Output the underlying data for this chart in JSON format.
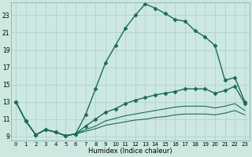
{
  "xlabel": "Humidex (Indice chaleur)",
  "bg_color": "#cce8e0",
  "grid_color": "#aacfc8",
  "line_color": "#1a6b5a",
  "xlim": [
    -0.5,
    23.5
  ],
  "ylim": [
    8.5,
    24.5
  ],
  "yticks": [
    9,
    11,
    13,
    15,
    17,
    19,
    21,
    23
  ],
  "xticks": [
    0,
    1,
    2,
    3,
    4,
    5,
    6,
    7,
    8,
    9,
    10,
    11,
    12,
    13,
    14,
    15,
    16,
    17,
    18,
    19,
    20,
    21,
    22,
    23
  ],
  "series": [
    {
      "y": [
        13.0,
        10.8,
        9.2,
        9.8,
        9.5,
        9.1,
        9.3,
        11.5,
        14.5,
        17.5,
        19.5,
        21.5,
        23.0,
        24.3,
        23.8,
        23.2,
        22.5,
        22.3,
        21.2,
        20.5,
        19.5,
        15.5,
        15.8,
        13.0
      ],
      "marker": "D",
      "lw": 1.0,
      "ms": 2.5,
      "dashed": false
    },
    {
      "y": [
        13.0,
        10.8,
        9.2,
        9.8,
        9.5,
        9.1,
        9.3,
        10.2,
        11.0,
        11.8,
        12.2,
        12.8,
        13.2,
        13.5,
        13.8,
        14.0,
        14.2,
        14.5,
        14.5,
        14.5,
        14.0,
        14.3,
        14.8,
        12.8
      ],
      "marker": "D",
      "lw": 1.0,
      "ms": 2.5,
      "dashed": false
    },
    {
      "y": [
        13.0,
        10.8,
        9.2,
        9.8,
        9.5,
        9.1,
        9.3,
        9.8,
        10.2,
        10.8,
        11.1,
        11.4,
        11.6,
        11.8,
        12.0,
        12.2,
        12.4,
        12.5,
        12.5,
        12.5,
        12.3,
        12.5,
        12.8,
        12.0
      ],
      "marker": null,
      "lw": 0.8,
      "ms": 0,
      "dashed": false
    },
    {
      "y": [
        13.0,
        10.8,
        9.2,
        9.8,
        9.5,
        9.1,
        9.3,
        9.6,
        9.9,
        10.3,
        10.5,
        10.7,
        10.9,
        11.0,
        11.2,
        11.3,
        11.5,
        11.6,
        11.6,
        11.6,
        11.5,
        11.7,
        12.0,
        11.5
      ],
      "marker": null,
      "lw": 0.8,
      "ms": 0,
      "dashed": false
    }
  ]
}
